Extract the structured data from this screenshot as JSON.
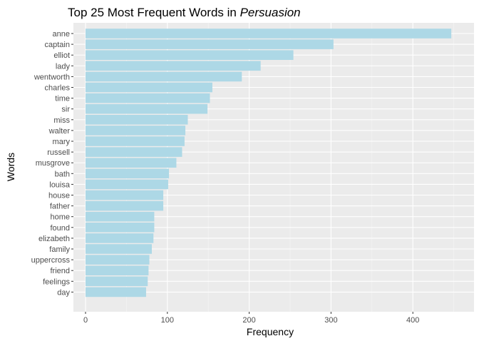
{
  "chart_data": {
    "type": "bar",
    "orientation": "horizontal",
    "title": "Top 25 Most Frequent Words in ",
    "title_italic": "Persuasion",
    "xlabel": "Frequency",
    "ylabel": "Words",
    "xlim": [
      0,
      470
    ],
    "x_ticks": [
      0,
      100,
      200,
      300,
      400
    ],
    "grid": true,
    "legend": "none",
    "categories": [
      "anne",
      "captain",
      "elliot",
      "lady",
      "wentworth",
      "charles",
      "time",
      "sir",
      "miss",
      "walter",
      "mary",
      "russell",
      "musgrove",
      "bath",
      "louisa",
      "house",
      "father",
      "home",
      "found",
      "elizabeth",
      "family",
      "uppercross",
      "friend",
      "feelings",
      "day"
    ],
    "values": [
      447,
      303,
      254,
      214,
      191,
      155,
      152,
      149,
      125,
      122,
      121,
      118,
      111,
      102,
      101,
      95,
      95,
      84,
      84,
      83,
      81,
      78,
      77,
      76,
      74
    ]
  },
  "colors": {
    "bar_fill": "#add8e6",
    "panel_background": "#ebebeb",
    "grid_major": "#ffffff",
    "grid_minor": "#f5f5f5",
    "tick_text": "#4d4d4d"
  }
}
